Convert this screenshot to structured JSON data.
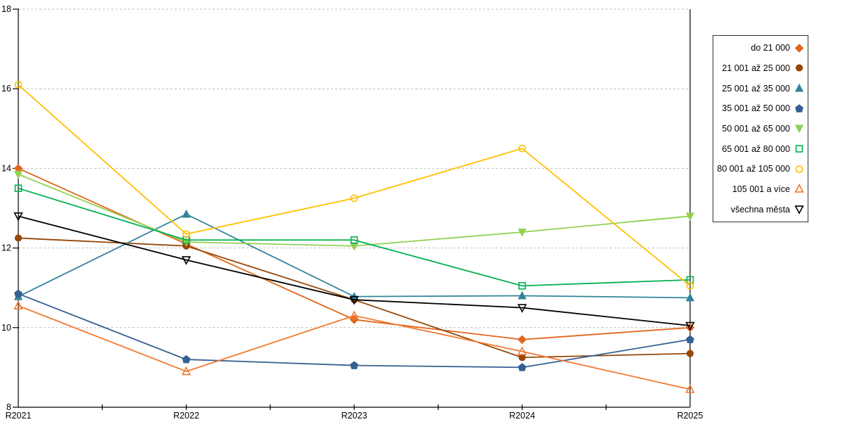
{
  "chart_data": {
    "type": "line",
    "title": "",
    "xlabel": "",
    "ylabel": "",
    "x_categories": [
      "R2021",
      "R2022",
      "R2023",
      "R2024",
      "R2025"
    ],
    "y_ticks": [
      8,
      10,
      12,
      14,
      16,
      18
    ],
    "ylim": [
      8,
      18
    ],
    "grid": "horizontal-dashed",
    "grid_color": "#bfbfbf",
    "axis_color": "#000000",
    "legend_position": "right-boxed",
    "series": [
      {
        "name": "do 21 000",
        "marker": "diamond",
        "fill": "filled",
        "color": "#e1661c",
        "values": [
          14.0,
          12.1,
          10.2,
          9.7,
          10.0
        ]
      },
      {
        "name": "21 001 až 25 000",
        "marker": "circle",
        "fill": "filled",
        "color": "#974706",
        "values": [
          12.25,
          12.05,
          10.7,
          9.25,
          9.35
        ]
      },
      {
        "name": "25 001 až 35 000",
        "marker": "triangle-up",
        "fill": "filled",
        "color": "#31849b",
        "values": [
          10.78,
          12.85,
          10.78,
          10.8,
          10.75
        ]
      },
      {
        "name": "35 001 až 50 000",
        "marker": "pentagon",
        "fill": "filled",
        "color": "#376092",
        "values": [
          10.85,
          9.2,
          9.05,
          9.0,
          9.7
        ]
      },
      {
        "name": "50 001 až 65 000",
        "marker": "triangle-down",
        "fill": "filled",
        "color": "#92d050",
        "values": [
          13.85,
          12.15,
          12.05,
          12.4,
          12.8
        ]
      },
      {
        "name": "65 001 až 80 000",
        "marker": "square",
        "fill": "open",
        "color": "#00b050",
        "values": [
          13.5,
          12.2,
          12.2,
          11.05,
          11.2
        ]
      },
      {
        "name": "80 001 až 105 000",
        "marker": "circle",
        "fill": "open",
        "color": "#ffc000",
        "values": [
          16.1,
          12.35,
          13.25,
          14.5,
          11.05
        ]
      },
      {
        "name": "105 001 a více",
        "marker": "triangle-up",
        "fill": "open",
        "color": "#f0782f",
        "values": [
          10.55,
          8.9,
          10.3,
          9.4,
          8.45
        ]
      },
      {
        "name": "všechna města",
        "marker": "triangle-down",
        "fill": "open",
        "color": "#000000",
        "values": [
          12.8,
          11.7,
          10.7,
          10.5,
          10.05
        ]
      }
    ]
  }
}
